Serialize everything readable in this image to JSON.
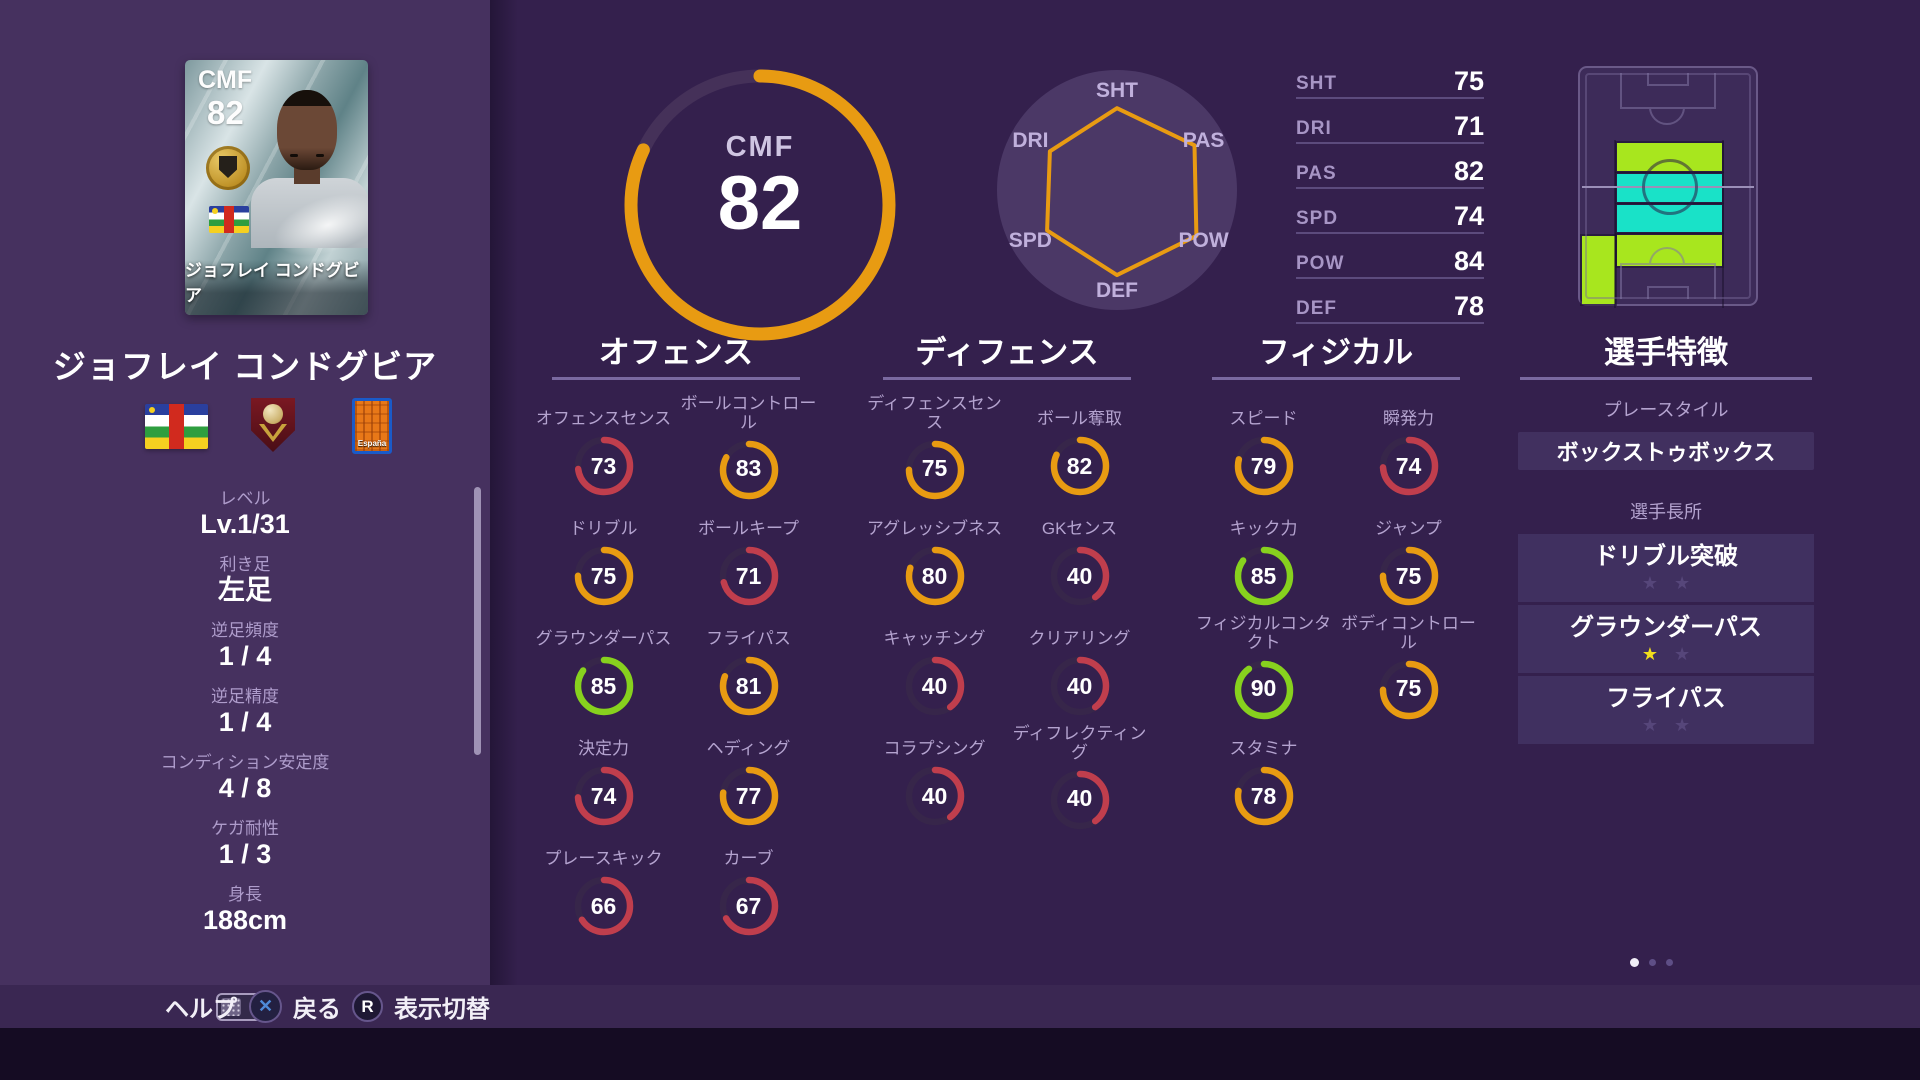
{
  "colors": {
    "accent_orange": "#E89B12",
    "ring_red": "#C03E4D",
    "ring_green": "#87D11E",
    "zone_green": "#A8E61E",
    "zone_cyan": "#19E2C8"
  },
  "sidebar": {
    "card_position": "CMF",
    "card_rating": "82",
    "card_name": "ジョフレイ コンドグビア",
    "player_name": "ジョフレイ コンドグビア",
    "league_text": "España",
    "info": [
      {
        "label": "レベル",
        "value": "Lv.1/31"
      },
      {
        "label": "利き足",
        "value": "左足"
      },
      {
        "label": "逆足頻度",
        "value": "1 / 4"
      },
      {
        "label": "逆足精度",
        "value": "1 / 4"
      },
      {
        "label": "コンディション安定度",
        "value": "4 / 8"
      },
      {
        "label": "ケガ耐性",
        "value": "1 / 3"
      },
      {
        "label": "身長",
        "value": "188cm"
      }
    ]
  },
  "overall": {
    "position": "CMF",
    "rating": "82",
    "percent": 82
  },
  "radar": {
    "labels": [
      "SHT",
      "PAS",
      "POW",
      "DEF",
      "SPD",
      "DRI"
    ],
    "values": [
      75,
      82,
      84,
      78,
      74,
      71
    ],
    "max": 99
  },
  "summary": [
    {
      "label": "SHT",
      "value": "75"
    },
    {
      "label": "DRI",
      "value": "71"
    },
    {
      "label": "PAS",
      "value": "82"
    },
    {
      "label": "SPD",
      "value": "74"
    },
    {
      "label": "POW",
      "value": "84"
    },
    {
      "label": "DEF",
      "value": "78"
    }
  ],
  "sections": [
    {
      "title": "オフェンス",
      "stats": [
        {
          "label": "オフェンスセンス",
          "value": 73
        },
        {
          "label": "ボールコントロール",
          "value": 83
        },
        {
          "label": "ドリブル",
          "value": 75
        },
        {
          "label": "ボールキープ",
          "value": 71
        },
        {
          "label": "グラウンダーパス",
          "value": 85
        },
        {
          "label": "フライパス",
          "value": 81
        },
        {
          "label": "決定力",
          "value": 74
        },
        {
          "label": "ヘディング",
          "value": 77
        },
        {
          "label": "プレースキック",
          "value": 66
        },
        {
          "label": "カーブ",
          "value": 67
        }
      ]
    },
    {
      "title": "ディフェンス",
      "stats": [
        {
          "label": "ディフェンスセンス",
          "value": 75
        },
        {
          "label": "ボール奪取",
          "value": 82
        },
        {
          "label": "アグレッシブネス",
          "value": 80
        },
        {
          "label": "GKセンス",
          "value": 40
        },
        {
          "label": "キャッチング",
          "value": 40
        },
        {
          "label": "クリアリング",
          "value": 40
        },
        {
          "label": "コラプシング",
          "value": 40
        },
        {
          "label": "ディフレクティング",
          "value": 40
        }
      ]
    },
    {
      "title": "フィジカル",
      "stats": [
        {
          "label": "スピード",
          "value": 79
        },
        {
          "label": "瞬発力",
          "value": 74
        },
        {
          "label": "キック力",
          "value": 85
        },
        {
          "label": "ジャンプ",
          "value": 75
        },
        {
          "label": "フィジカルコンタクト",
          "value": 90
        },
        {
          "label": "ボディコントロール",
          "value": 75
        },
        {
          "label": "スタミナ",
          "value": 78
        }
      ]
    }
  ],
  "traits": {
    "title": "選手特徴",
    "playstyle_label": "プレースタイル",
    "playstyle": "ボックストゥボックス",
    "skills_label": "選手長所",
    "skills": [
      {
        "name": "ドリブル突破",
        "stars": 0,
        "max_stars": 2
      },
      {
        "name": "グラウンダーパス",
        "stars": 1,
        "max_stars": 2
      },
      {
        "name": "フライパス",
        "stars": 0,
        "max_stars": 2
      }
    ]
  },
  "pagination": {
    "dots": 3,
    "active": 0
  },
  "footer": {
    "help_label": "ヘルプ",
    "back_label": "戻る",
    "toggle_label": "表示切替",
    "back_glyph": "✕",
    "toggle_glyph": "R"
  }
}
